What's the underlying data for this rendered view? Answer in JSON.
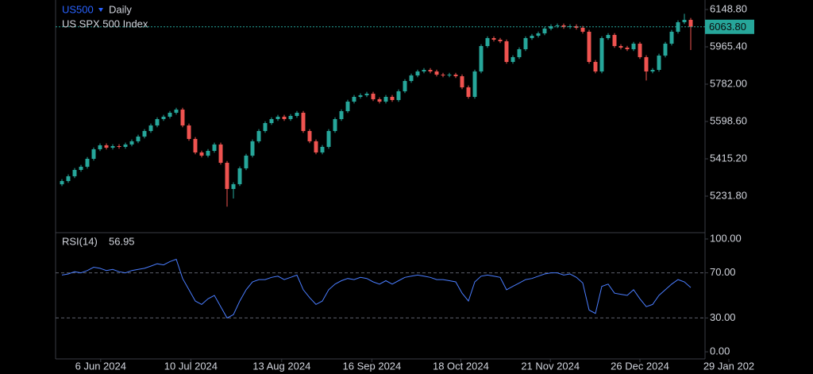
{
  "chart_data": [
    {
      "type": "candlestick",
      "symbol": "US500",
      "interval": "Daily",
      "name": "US SPX 500 Index",
      "up_color": "#26a69a",
      "down_color": "#ef5350",
      "xlim": [
        -1,
        101.25
      ],
      "ylim": [
        5052.3,
        6195.6
      ],
      "yticks": [
        {
          "value": 6148.8,
          "label": "6148.80"
        },
        {
          "value": 5965.4,
          "label": "5965.40"
        },
        {
          "value": 5782,
          "label": "5782.00"
        },
        {
          "value": 5598.6,
          "label": "5598.60"
        },
        {
          "value": 5415.2,
          "label": "5415.20"
        },
        {
          "value": 5231.8,
          "label": "5231.80"
        }
      ],
      "last_value_label": "6063.80",
      "ohlc": [
        [
          5290.0,
          5315.0,
          5281.0,
          5306.0
        ],
        [
          5306.0,
          5338.4,
          5297.0,
          5329.4
        ],
        [
          5329.4,
          5369.6,
          5320.4,
          5360.6
        ],
        [
          5360.6,
          5385.2,
          5351.6,
          5376.2
        ],
        [
          5376.2,
          5424.2,
          5367.2,
          5415.2
        ],
        [
          5415.2,
          5471.0,
          5406.2,
          5462.0
        ],
        [
          5462.0,
          5490.6,
          5453.0,
          5481.6
        ],
        [
          5481.6,
          5490.6,
          5460.8,
          5469.8
        ],
        [
          5469.8,
          5486.7,
          5460.8,
          5477.7
        ],
        [
          5477.7,
          5486.7,
          5464.8,
          5473.8
        ],
        [
          5473.8,
          5494.5,
          5464.8,
          5485.5
        ],
        [
          5485.5,
          5510.2,
          5476.5,
          5501.2
        ],
        [
          5501.2,
          5533.5,
          5492.2,
          5524.5
        ],
        [
          5524.5,
          5560.8,
          5515.5,
          5551.8
        ],
        [
          5551.8,
          5588.1,
          5542.8,
          5579.1
        ],
        [
          5579.1,
          5619.3,
          5570.1,
          5610.3
        ],
        [
          5610.3,
          5631.1,
          5601.3,
          5622.1
        ],
        [
          5622.1,
          5650.5,
          5613.1,
          5641.5
        ],
        [
          5641.5,
          5666.1,
          5632.5,
          5657.1
        ],
        [
          5657.1,
          5666.1,
          5570.1,
          5579.1
        ],
        [
          5579.1,
          5588.1,
          5503.8,
          5512.8
        ],
        [
          5512.8,
          5521.8,
          5437.4,
          5446.4
        ],
        [
          5446.4,
          5455.4,
          5421.8,
          5430.8
        ],
        [
          5430.8,
          5463.2,
          5421.8,
          5454.2
        ],
        [
          5454.2,
          5494.5,
          5445.2,
          5485.5
        ],
        [
          5485.5,
          5494.5,
          5386.7,
          5395.7
        ],
        [
          5395.7,
          5404.7,
          5180.0,
          5267.0
        ],
        [
          5267.0,
          5299.4,
          5220.0,
          5290.4
        ],
        [
          5290.4,
          5377.4,
          5281.4,
          5368.4
        ],
        [
          5368.4,
          5439.8,
          5359.4,
          5430.8
        ],
        [
          5430.8,
          5510.2,
          5421.8,
          5501.2
        ],
        [
          5501.2,
          5560.8,
          5492.2,
          5551.8
        ],
        [
          5551.8,
          5599.8,
          5542.8,
          5590.8
        ],
        [
          5590.8,
          5619.3,
          5581.8,
          5610.3
        ],
        [
          5610.3,
          5631.1,
          5601.3,
          5622.1
        ],
        [
          5622.1,
          5631.1,
          5601.3,
          5610.3
        ],
        [
          5610.3,
          5634.9,
          5601.3,
          5625.9
        ],
        [
          5625.9,
          5650.5,
          5616.9,
          5641.5
        ],
        [
          5641.5,
          5650.5,
          5542.8,
          5551.8
        ],
        [
          5551.8,
          5560.8,
          5492.2,
          5501.2
        ],
        [
          5501.2,
          5510.2,
          5437.4,
          5446.4
        ],
        [
          5446.4,
          5482.8,
          5437.4,
          5473.8
        ],
        [
          5473.8,
          5560.8,
          5464.8,
          5551.8
        ],
        [
          5551.8,
          5619.3,
          5542.8,
          5610.3
        ],
        [
          5610.3,
          5658.3,
          5601.3,
          5649.3
        ],
        [
          5649.3,
          5705.2,
          5640.3,
          5696.2
        ],
        [
          5696.2,
          5728.6,
          5687.2,
          5719.6
        ],
        [
          5719.6,
          5736.4,
          5710.6,
          5727.4
        ],
        [
          5727.4,
          5744.2,
          5718.4,
          5735.2
        ],
        [
          5735.2,
          5744.2,
          5698.9,
          5707.9
        ],
        [
          5707.9,
          5716.9,
          5687.2,
          5696.2
        ],
        [
          5696.2,
          5728.6,
          5687.2,
          5719.6
        ],
        [
          5719.6,
          5728.6,
          5695.0,
          5704.0
        ],
        [
          5704.0,
          5755.9,
          5695.0,
          5746.9
        ],
        [
          5746.9,
          5806.6,
          5737.9,
          5797.6
        ],
        [
          5797.6,
          5833.9,
          5788.6,
          5824.9
        ],
        [
          5824.9,
          5853.4,
          5815.9,
          5844.4
        ],
        [
          5844.4,
          5861.2,
          5835.4,
          5852.2
        ],
        [
          5852.2,
          5861.2,
          5835.4,
          5844.4
        ],
        [
          5844.4,
          5853.4,
          5819.8,
          5828.8
        ],
        [
          5828.8,
          5837.8,
          5815.9,
          5824.9
        ],
        [
          5824.9,
          5837.8,
          5815.9,
          5828.8
        ],
        [
          5828.8,
          5837.8,
          5812.0,
          5821.0
        ],
        [
          5821.0,
          5830.0,
          5757.4,
          5766.4
        ],
        [
          5766.4,
          5775.4,
          5710.6,
          5719.6
        ],
        [
          5719.6,
          5853.4,
          5710.6,
          5844.4
        ],
        [
          5844.4,
          5978.3,
          5835.4,
          5969.3
        ],
        [
          5969.3,
          6017.3,
          5960.3,
          6008.3
        ],
        [
          6008.3,
          6017.3,
          5991.5,
          6000.5
        ],
        [
          6000.5,
          6009.5,
          5983.7,
          5992.7
        ],
        [
          5992.7,
          6001.7,
          5882.3,
          5891.3
        ],
        [
          5891.3,
          5923.7,
          5882.3,
          5914.7
        ],
        [
          5914.7,
          5962.7,
          5905.7,
          5953.7
        ],
        [
          5953.7,
          6017.3,
          5944.7,
          6008.3
        ],
        [
          6008.3,
          6029.0,
          5999.3,
          6020.0
        ],
        [
          6020.0,
          6040.7,
          6011.0,
          6031.7
        ],
        [
          6031.7,
          6064.2,
          6022.7,
          6055.2
        ],
        [
          6055.2,
          6075.9,
          6046.2,
          6066.9
        ],
        [
          6066.9,
          6079.8,
          6057.9,
          6070.8
        ],
        [
          6070.8,
          6079.8,
          6054.0,
          6063.0
        ],
        [
          6063.0,
          6075.9,
          6054.0,
          6066.9
        ],
        [
          6066.9,
          6075.9,
          6050.1,
          6059.1
        ],
        [
          6059.1,
          6068.1,
          6030.6,
          6039.6
        ],
        [
          6039.6,
          6048.6,
          5882.3,
          5891.3
        ],
        [
          5891.3,
          5900.3,
          5835.4,
          5844.4
        ],
        [
          5844.4,
          6017.3,
          5835.4,
          6008.3
        ],
        [
          6008.3,
          6032.9,
          5999.3,
          6023.9
        ],
        [
          6023.9,
          6032.9,
          5960.3,
          5969.3
        ],
        [
          5969.3,
          5978.3,
          5952.5,
          5961.5
        ],
        [
          5961.5,
          5970.5,
          5944.7,
          5953.7
        ],
        [
          5953.7,
          5990.0,
          5944.7,
          5981.0
        ],
        [
          5981.0,
          5990.0,
          5905.7,
          5914.7
        ],
        [
          5914.7,
          5923.7,
          5800.0,
          5844.4
        ],
        [
          5844.4,
          5861.2,
          5835.4,
          5852.2
        ],
        [
          5852.2,
          5931.5,
          5843.2,
          5922.5
        ],
        [
          5922.5,
          5990.0,
          5913.5,
          5981.0
        ],
        [
          5981.0,
          6048.6,
          5972.0,
          6039.6
        ],
        [
          6039.6,
          6095.4,
          6030.6,
          6086.4
        ],
        [
          6086.4,
          6128.0,
          6077.4,
          6098.1
        ],
        [
          6098.1,
          6107.1,
          5950.0,
          6063.8
        ]
      ]
    },
    {
      "type": "line",
      "title": "RSI(14)",
      "color": "#4a7dff",
      "xlim": [
        -1,
        101.25
      ],
      "ylim": [
        -6.3,
        105.6
      ],
      "yticks": [
        {
          "value": 100,
          "label": "100.00"
        },
        {
          "value": 70,
          "label": "70.00"
        },
        {
          "value": 30,
          "label": "30.00"
        },
        {
          "value": 0,
          "label": "0.00"
        }
      ],
      "levels": [
        70,
        30
      ],
      "xticks": [
        {
          "value": 6.1,
          "label": "6 Jun 2024"
        },
        {
          "value": 20.3,
          "label": "10 Jul 2024"
        },
        {
          "value": 34.6,
          "label": "13 Aug 2024"
        },
        {
          "value": 48.8,
          "label": "16 Sep 2024"
        },
        {
          "value": 62.8,
          "label": "18 Oct 2024"
        },
        {
          "value": 76.9,
          "label": "21 Nov 2024"
        },
        {
          "value": 91,
          "label": "26 Dec 2024"
        },
        {
          "value": 105,
          "label": "29 Jan 202"
        }
      ],
      "values": [
        68,
        69,
        71,
        70,
        72,
        75,
        74,
        72,
        73,
        71,
        70,
        72,
        73,
        74,
        76,
        78,
        77,
        80,
        82,
        65,
        55,
        45,
        42,
        47,
        50,
        40,
        30,
        33,
        45,
        55,
        62,
        64,
        64,
        66,
        67,
        64,
        66,
        68,
        55,
        48,
        42,
        45,
        55,
        60,
        63,
        65,
        64,
        66,
        65,
        62,
        60,
        63,
        60,
        63,
        66,
        67,
        68,
        67,
        66,
        64,
        64,
        63,
        62,
        52,
        45,
        62,
        67,
        68,
        67,
        66,
        55,
        58,
        61,
        64,
        65,
        67,
        69,
        70,
        70,
        68,
        69,
        66,
        61,
        37,
        34,
        58,
        60,
        52,
        51,
        50,
        55,
        47,
        40,
        42,
        50,
        55,
        60,
        64,
        62,
        56.95
      ]
    }
  ]
}
